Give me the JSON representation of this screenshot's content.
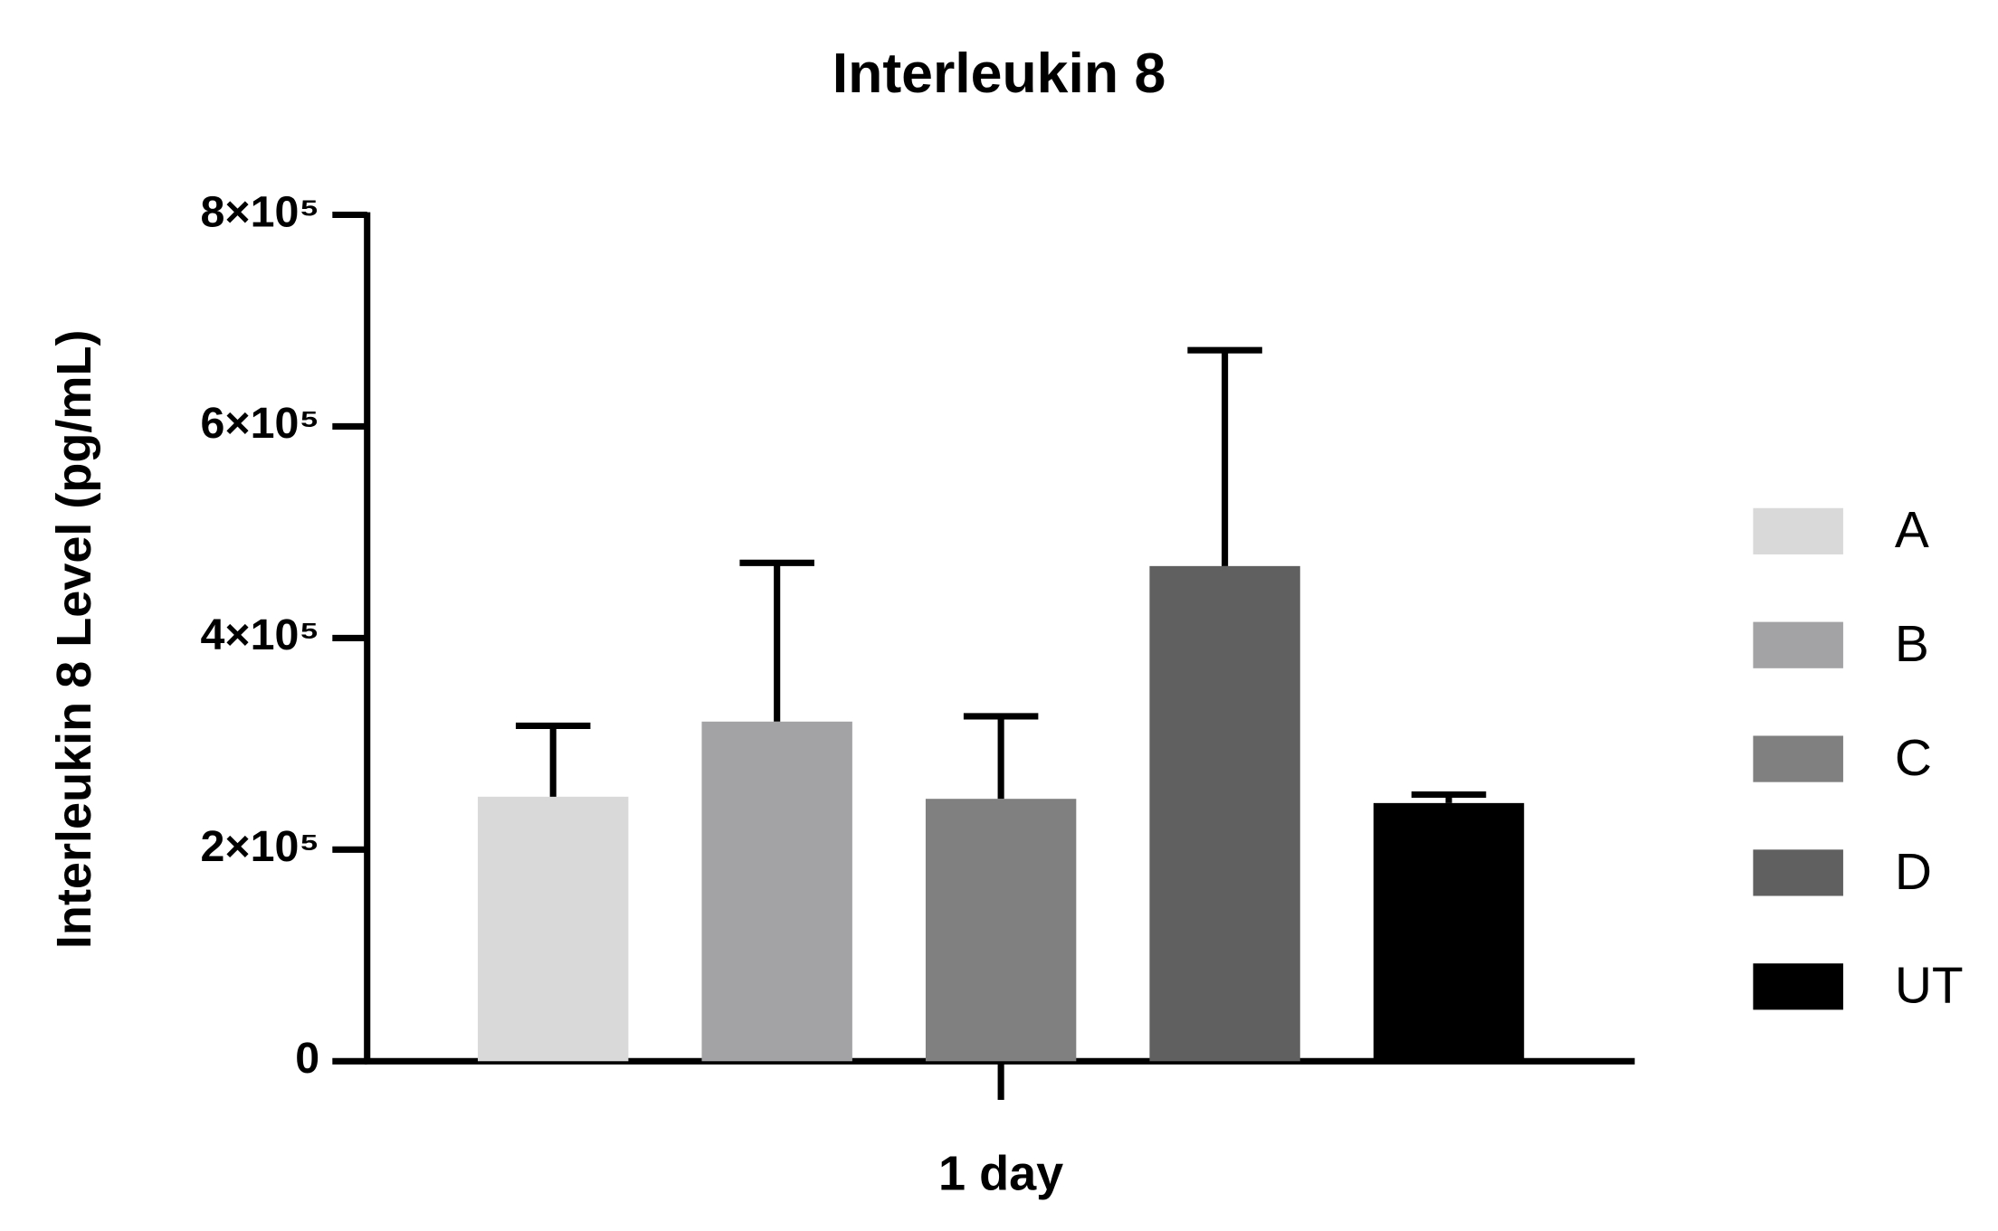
{
  "chart_data": {
    "type": "bar",
    "title": "Interleukin 8",
    "y_label": "Interleukin 8 Level (pg/mL)",
    "categories": [
      "1 day"
    ],
    "series": [
      {
        "name": "A",
        "color": "#d9d9d9",
        "values": [
          250000
        ],
        "errors": [
          67000
        ]
      },
      {
        "name": "B",
        "color": "#a3a3a6",
        "values": [
          321000
        ],
        "errors": [
          150000
        ]
      },
      {
        "name": "C",
        "color": "#808080",
        "values": [
          248000
        ],
        "errors": [
          78000
        ]
      },
      {
        "name": "D",
        "color": "#606060",
        "values": [
          468000
        ],
        "errors": [
          204000
        ]
      },
      {
        "name": "UT",
        "color": "#000000",
        "values": [
          244000
        ],
        "errors": [
          8000
        ]
      }
    ],
    "ylim": [
      0,
      800000
    ],
    "yticks": [
      0,
      {
        "value": 200000,
        "label": "2×10⁵"
      },
      {
        "value": 400000,
        "label": "4×10⁵"
      },
      {
        "value": 600000,
        "label": "6×10⁵"
      },
      {
        "value": 800000,
        "label": "8×10⁵"
      }
    ],
    "legend": "right"
  }
}
